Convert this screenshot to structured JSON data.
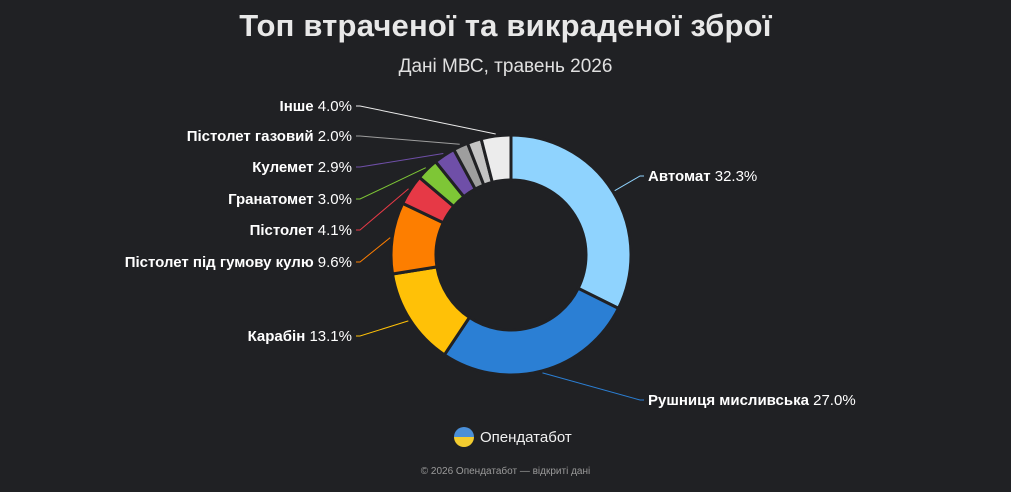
{
  "header": {
    "title": "Топ втраченої та викраденої зброї",
    "subtitle": "Дані МВС, травень 2026"
  },
  "chart_data": {
    "type": "pie",
    "donut": true,
    "slices": [
      {
        "label": "Автомат",
        "value": 32.3,
        "pct": "32.3%",
        "color": "#8fd3fe"
      },
      {
        "label": "Рушниця мисливська",
        "value": 27.0,
        "pct": "27.0%",
        "color": "#2b7fd4"
      },
      {
        "label": "Карабін",
        "value": 13.1,
        "pct": "13.1%",
        "color": "#ffc107"
      },
      {
        "label": "Пістолет під гумову кулю",
        "value": 9.6,
        "pct": "9.6%",
        "color": "#fd7e00"
      },
      {
        "label": "Пістолет",
        "value": 4.1,
        "pct": "4.1%",
        "color": "#e63946"
      },
      {
        "label": "Гранатомет",
        "value": 3.0,
        "pct": "3.0%",
        "color": "#7ec636"
      },
      {
        "label": "Кулемет",
        "value": 2.9,
        "pct": "2.9%",
        "color": "#6f4fa8"
      },
      {
        "label": "Пістолет газовий",
        "value": 2.0,
        "pct": "2.0%",
        "color": "#9e9e9e"
      },
      {
        "label": "",
        "value": 1.9,
        "pct": "",
        "color": "#c4c4c4"
      },
      {
        "label": "Інше",
        "value": 4.0,
        "pct": "4.0%",
        "color": "#ececec"
      }
    ]
  },
  "brand": {
    "name": "Опендатабот"
  },
  "footer": {
    "text": "© 2026 Опендатабот — відкриті дані"
  }
}
